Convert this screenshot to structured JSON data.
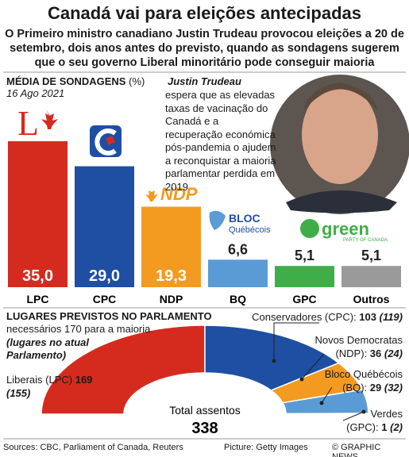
{
  "header": {
    "title": "Canadá vai para eleições antecipadas",
    "subtitle": "O Primeiro ministro canadiano Justin Trudeau provocou eleições a 20 de setembro, dois anos antes do previsto, quando as sondagens sugerem que o seu governo Liberal minoritário pode conseguir maioria"
  },
  "annotation": {
    "name": "Justin Trudeau",
    "text": "espera que as elevadas taxas de vacinação do Canadá e a recuperação económica pós-pandemia o ajudem a reconquistar a maioria parlamentar perdida em 2019"
  },
  "logos": {
    "lpc": "L",
    "ndp": "NDP",
    "bloc": "BLOC",
    "bloc_sub": "Québécois",
    "green": "green",
    "green_sub": "PARTY OF CANADA"
  },
  "chart_data": [
    {
      "type": "bar",
      "title": "MÉDIA DE SONDAGENS",
      "unit": "(%)",
      "subtitle": "16 Ago 2021",
      "categories": [
        "LPC",
        "CPC",
        "NDP",
        "BQ",
        "GPC",
        "Outros"
      ],
      "values": [
        35.0,
        29.0,
        19.3,
        6.6,
        5.1,
        5.1
      ],
      "value_labels": [
        "35,0",
        "29,0",
        "19,3",
        "6,6",
        "5,1",
        "5,1"
      ],
      "colors": [
        "#d52b1e",
        "#1f4fa3",
        "#f39a21",
        "#5b9bd5",
        "#3fae49",
        "#9a9a9a"
      ]
    },
    {
      "type": "pie",
      "shape": "semicircle",
      "title": "LUGARES PREVISTOS NO PARLAMENTO",
      "subtitle": "necessários 170 para a maioria",
      "note": "(lugares no atual Parlamento)",
      "categories": [
        "Liberais (LPC)",
        "Conservadores (CPC):",
        "Novos Democratas (NDP):",
        "Bloco Québécois (BQ):",
        "Verdes (GPC):"
      ],
      "values": [
        169,
        103,
        36,
        29,
        1
      ],
      "current_values": [
        155,
        119,
        24,
        32,
        2
      ],
      "current_value_labels": [
        "(155)",
        "(119)",
        "(24)",
        "(32)",
        "(2)"
      ],
      "colors": [
        "#d52b1e",
        "#1f4fa3",
        "#f39a21",
        "#5b9bd5",
        "#3fae49"
      ],
      "total_label": "Total assentos",
      "total": 338
    }
  ],
  "footer": {
    "sources": "Sources: CBC, Parliament of Canada, Reuters",
    "picture": "Picture: Getty Images",
    "credit": "© GRAPHIC NEWS"
  }
}
